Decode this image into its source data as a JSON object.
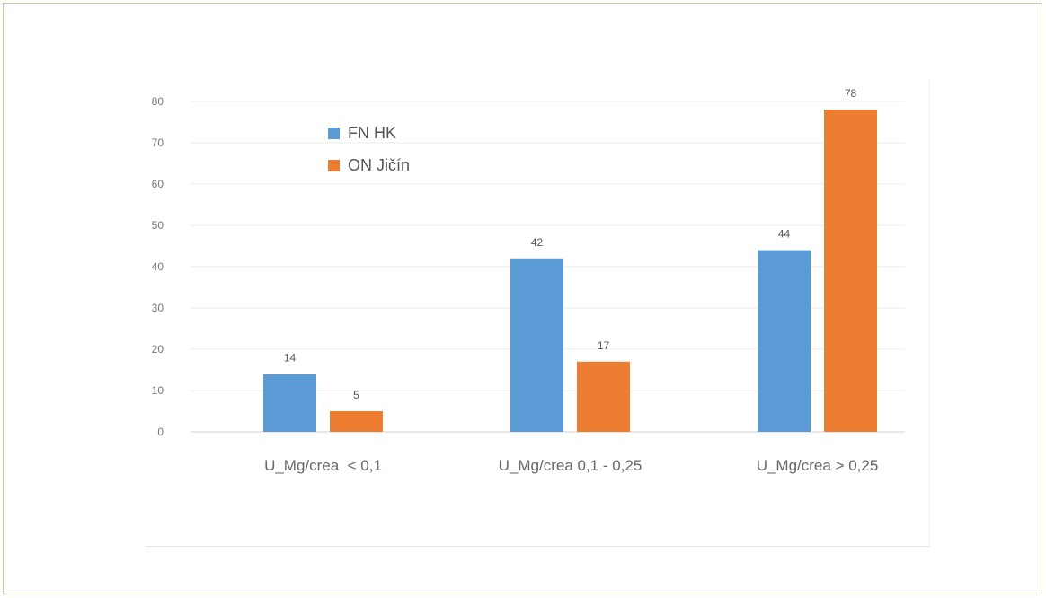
{
  "chart_data": {
    "type": "bar",
    "categories": [
      "U_Mg/crea  < 0,1",
      "U_Mg/crea 0,1 - 0,25",
      "U_Mg/crea > 0,25"
    ],
    "series": [
      {
        "name": "FN HK",
        "values": [
          14,
          42,
          44
        ],
        "color": "#5b9bd5"
      },
      {
        "name": "ON Jičín",
        "values": [
          5,
          17,
          78
        ],
        "color": "#ed7d31"
      }
    ],
    "ylim": [
      0,
      80
    ],
    "yticks": [
      0,
      10,
      20,
      30,
      40,
      50,
      60,
      70,
      80
    ],
    "grid": true,
    "legend_position": "top-left",
    "data_labels": true
  }
}
